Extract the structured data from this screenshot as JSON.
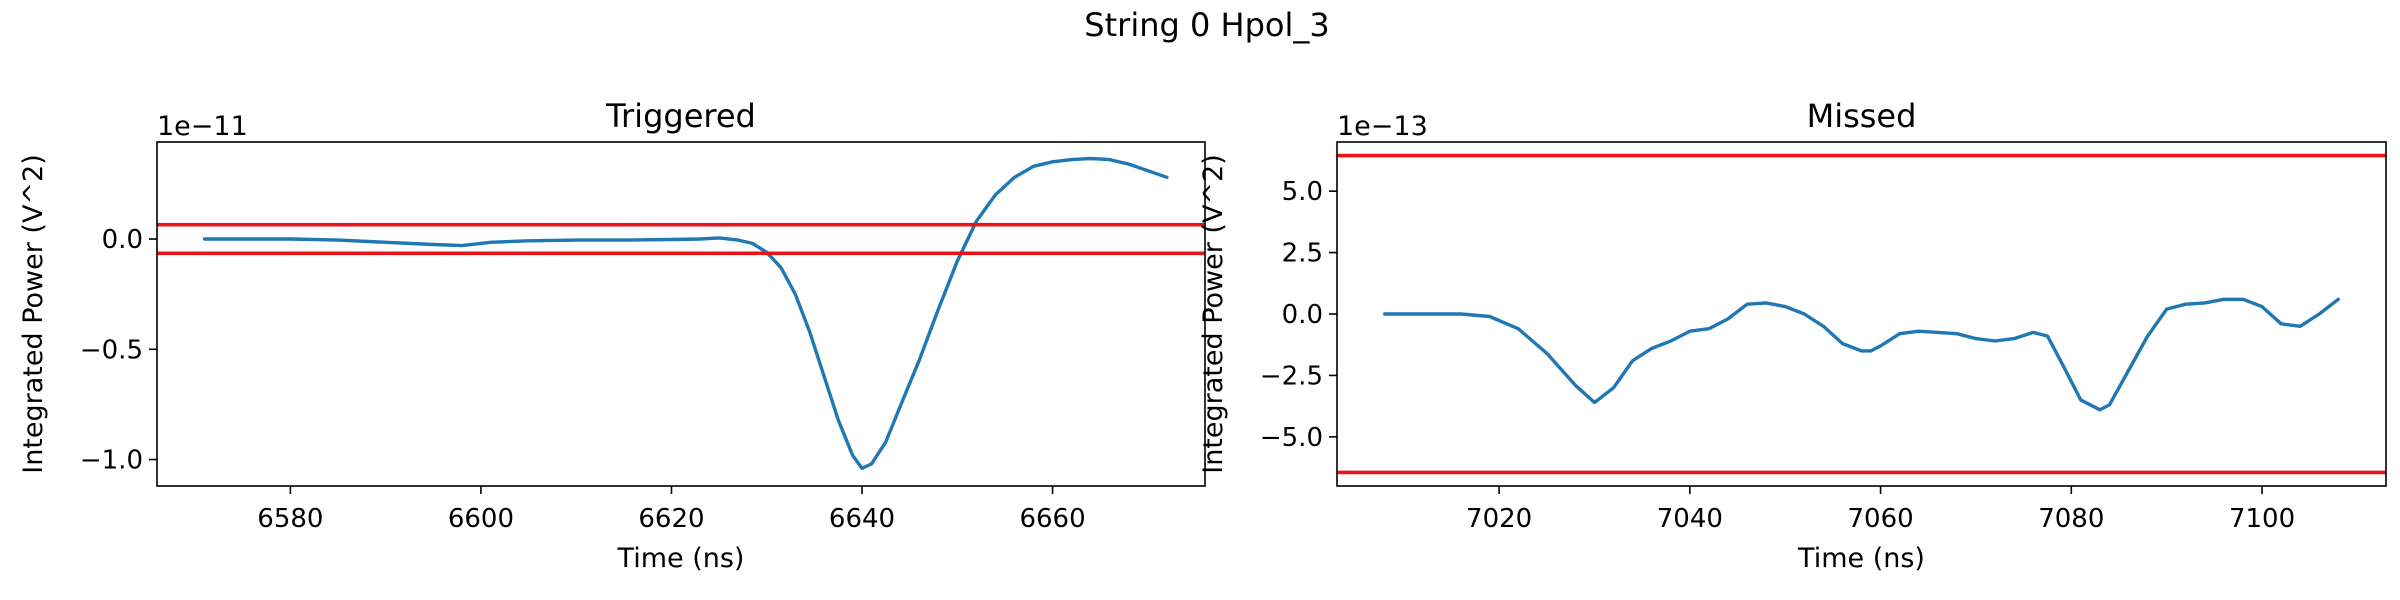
{
  "suptitle": "String 0 Hpol_3",
  "chart_data": [
    {
      "type": "line",
      "title": "Triggered",
      "xlabel": "Time (ns)",
      "ylabel": "Integrated Power (V^2)",
      "y_offset_label": "1e−11",
      "y_scale": 1e-11,
      "xlim": [
        6566,
        6676
      ],
      "ylim": [
        -1.12,
        0.44
      ],
      "xticks": [
        6580,
        6600,
        6620,
        6640,
        6660
      ],
      "xtick_labels": [
        "6580",
        "6600",
        "6620",
        "6640",
        "6660"
      ],
      "yticks": [
        0.0,
        -0.5,
        -1.0
      ],
      "ytick_labels": [
        "0.0",
        "−0.5",
        "−1.0"
      ],
      "thresholds": [
        0.065,
        -0.065
      ],
      "threshold_color": "#e8161b",
      "series_color": "#1f77b4",
      "grid": false,
      "x": [
        6571,
        6575,
        6580,
        6585,
        6590,
        6595,
        6598,
        6601,
        6605,
        6610,
        6615,
        6620,
        6623,
        6625,
        6627,
        6628.5,
        6630,
        6631.5,
        6633,
        6634.5,
        6636,
        6637.5,
        6639,
        6640,
        6641,
        6642.5,
        6644,
        6646,
        6648,
        6650,
        6652,
        6654,
        6656,
        6658,
        6660,
        6662,
        6664,
        6666,
        6668,
        6670,
        6672
      ],
      "y": [
        0.0,
        0.0,
        0.0,
        -0.005,
        -0.015,
        -0.025,
        -0.03,
        -0.015,
        -0.008,
        -0.005,
        -0.005,
        -0.002,
        0.0,
        0.005,
        -0.005,
        -0.02,
        -0.06,
        -0.13,
        -0.25,
        -0.42,
        -0.62,
        -0.82,
        -0.98,
        -1.04,
        -1.02,
        -0.92,
        -0.76,
        -0.55,
        -0.32,
        -0.1,
        0.08,
        0.2,
        0.28,
        0.33,
        0.35,
        0.36,
        0.365,
        0.36,
        0.34,
        0.31,
        0.28
      ]
    },
    {
      "type": "line",
      "title": "Missed",
      "xlabel": "Time (ns)",
      "ylabel": "Integrated Power (V^2)",
      "y_offset_label": "1e−13",
      "y_scale": 1e-13,
      "xlim": [
        7003,
        7113
      ],
      "ylim": [
        -7.0,
        7.0
      ],
      "xticks": [
        7020,
        7040,
        7060,
        7080,
        7100
      ],
      "xtick_labels": [
        "7020",
        "7040",
        "7060",
        "7080",
        "7100"
      ],
      "yticks": [
        5.0,
        2.5,
        0.0,
        -2.5,
        -5.0
      ],
      "ytick_labels": [
        "5.0",
        "2.5",
        "0.0",
        "−2.5",
        "−5.0"
      ],
      "thresholds": [
        6.45,
        -6.45
      ],
      "threshold_color": "#e8161b",
      "series_color": "#1f77b4",
      "grid": false,
      "x": [
        7008,
        7012,
        7016,
        7019,
        7022,
        7025,
        7028,
        7030,
        7032,
        7034,
        7036,
        7038,
        7040,
        7042,
        7044,
        7046,
        7048,
        7050,
        7052,
        7054,
        7056,
        7058,
        7059,
        7060,
        7062,
        7064,
        7066,
        7068,
        7070,
        7072,
        7074,
        7076,
        7077.5,
        7079,
        7081,
        7083,
        7084,
        7086,
        7088,
        7090,
        7092,
        7094,
        7096,
        7098,
        7100,
        7102,
        7104,
        7106,
        7108
      ],
      "y": [
        0.0,
        0.0,
        0.0,
        -0.1,
        -0.6,
        -1.6,
        -2.9,
        -3.6,
        -3.0,
        -1.9,
        -1.4,
        -1.1,
        -0.7,
        -0.6,
        -0.2,
        0.4,
        0.45,
        0.3,
        0.0,
        -0.5,
        -1.2,
        -1.5,
        -1.5,
        -1.3,
        -0.8,
        -0.7,
        -0.75,
        -0.8,
        -1.0,
        -1.1,
        -1.0,
        -0.75,
        -0.9,
        -2.0,
        -3.5,
        -3.9,
        -3.7,
        -2.3,
        -0.9,
        0.2,
        0.4,
        0.45,
        0.6,
        0.6,
        0.3,
        -0.4,
        -0.5,
        0.0,
        0.6
      ]
    }
  ]
}
